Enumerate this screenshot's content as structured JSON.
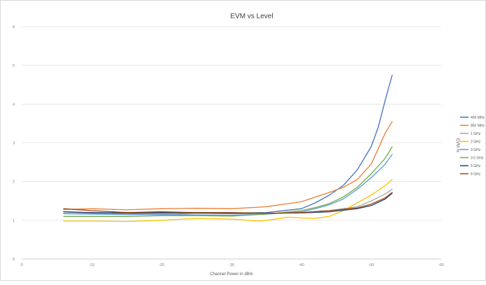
{
  "chart_data": {
    "type": "line",
    "title": "EVM vs Level",
    "xlabel": "Channel Power in dBm",
    "ylabel": "EVM %",
    "xlim": [
      0,
      -60
    ],
    "ylim": [
      0,
      6
    ],
    "x_ticks": [
      0,
      -10,
      -20,
      -30,
      -40,
      -50,
      -60
    ],
    "y_ticks": [
      0,
      1,
      2,
      3,
      4,
      5,
      6
    ],
    "grid": "horizontal",
    "legend_position": "right",
    "series": [
      {
        "name": "400 MHz",
        "color": "#4472c4",
        "x": [
          -6,
          -10,
          -15,
          -20,
          -25,
          -30,
          -35,
          -40,
          -42,
          -44,
          -46,
          -48,
          -50,
          -51,
          -52,
          -53
        ],
        "y": [
          1.22,
          1.19,
          1.18,
          1.18,
          1.2,
          1.19,
          1.2,
          1.3,
          1.45,
          1.65,
          1.9,
          2.3,
          2.9,
          3.4,
          4.1,
          4.75
        ]
      },
      {
        "name": "850 MHz",
        "color": "#ed7d31",
        "x": [
          -6,
          -10,
          -15,
          -20,
          -25,
          -30,
          -35,
          -40,
          -42,
          -44,
          -46,
          -48,
          -50,
          -51,
          -52,
          -53
        ],
        "y": [
          1.28,
          1.3,
          1.27,
          1.3,
          1.31,
          1.3,
          1.35,
          1.48,
          1.6,
          1.72,
          1.85,
          2.05,
          2.45,
          2.85,
          3.25,
          3.55
        ]
      },
      {
        "name": "1 GHz",
        "color": "#a5a5a5",
        "x": [
          -6,
          -10,
          -15,
          -20,
          -25,
          -30,
          -35,
          -40,
          -44,
          -48,
          -50,
          -52,
          -53
        ],
        "y": [
          1.18,
          1.17,
          1.16,
          1.15,
          1.18,
          1.17,
          1.18,
          1.2,
          1.25,
          1.35,
          1.5,
          1.68,
          1.8
        ]
      },
      {
        "name": "2 GHz",
        "color": "#ffc000",
        "x": [
          -6,
          -10,
          -15,
          -20,
          -25,
          -30,
          -34,
          -36,
          -38,
          -40,
          -42,
          -44,
          -46,
          -48,
          -50,
          -52,
          -53
        ],
        "y": [
          0.98,
          0.98,
          0.97,
          1.0,
          1.05,
          1.03,
          0.98,
          1.02,
          1.08,
          1.06,
          1.05,
          1.1,
          1.25,
          1.45,
          1.65,
          1.9,
          2.05
        ]
      },
      {
        "name": "3 GHz",
        "color": "#5b9bd5",
        "x": [
          -6,
          -10,
          -15,
          -20,
          -25,
          -30,
          -35,
          -40,
          -42,
          -44,
          -46,
          -48,
          -50,
          -52,
          -53
        ],
        "y": [
          1.17,
          1.16,
          1.15,
          1.15,
          1.14,
          1.13,
          1.16,
          1.22,
          1.3,
          1.4,
          1.55,
          1.8,
          2.1,
          2.45,
          2.7
        ]
      },
      {
        "name": "3.5 GHz",
        "color": "#70ad47",
        "x": [
          -6,
          -10,
          -15,
          -20,
          -25,
          -30,
          -35,
          -40,
          -42,
          -44,
          -46,
          -48,
          -50,
          -52,
          -53
        ],
        "y": [
          1.1,
          1.1,
          1.1,
          1.12,
          1.12,
          1.11,
          1.16,
          1.25,
          1.33,
          1.43,
          1.6,
          1.85,
          2.2,
          2.6,
          2.9
        ]
      },
      {
        "name": "5 GHz",
        "color": "#264478",
        "x": [
          -6,
          -10,
          -15,
          -20,
          -25,
          -30,
          -35,
          -40,
          -44,
          -48,
          -50,
          -52,
          -53
        ],
        "y": [
          1.22,
          1.2,
          1.19,
          1.2,
          1.19,
          1.18,
          1.18,
          1.19,
          1.22,
          1.3,
          1.38,
          1.55,
          1.7
        ]
      },
      {
        "name": "6 GHz",
        "color": "#9e480e",
        "x": [
          -6,
          -10,
          -15,
          -20,
          -25,
          -30,
          -35,
          -40,
          -44,
          -48,
          -50,
          -52,
          -53
        ],
        "y": [
          1.3,
          1.25,
          1.2,
          1.22,
          1.2,
          1.2,
          1.18,
          1.2,
          1.25,
          1.32,
          1.42,
          1.58,
          1.72
        ]
      }
    ]
  }
}
